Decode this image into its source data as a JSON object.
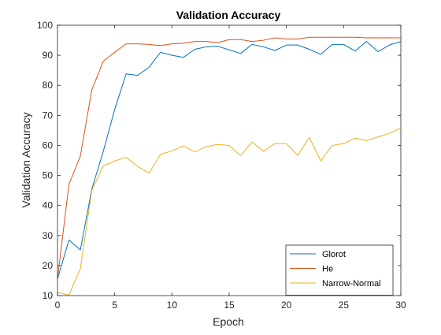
{
  "chart_data": {
    "type": "line",
    "title": "Validation Accuracy",
    "xlabel": "Epoch",
    "ylabel": "Validation Accuracy",
    "xlim": [
      0,
      30
    ],
    "ylim": [
      10,
      100
    ],
    "xticks": [
      0,
      5,
      10,
      15,
      20,
      25,
      30
    ],
    "yticks": [
      10,
      20,
      30,
      40,
      50,
      60,
      70,
      80,
      90,
      100
    ],
    "grid": false,
    "legend_position": "bottom-right",
    "x": [
      0,
      1,
      2,
      3,
      4,
      5,
      6,
      7,
      8,
      9,
      10,
      11,
      12,
      13,
      14,
      15,
      16,
      17,
      18,
      19,
      20,
      21,
      22,
      23,
      24,
      25,
      26,
      27,
      28,
      29,
      30
    ],
    "series": [
      {
        "name": "Glorot",
        "color": "#0072BD",
        "values": [
          15.5,
          28.5,
          25.2,
          45.5,
          58.0,
          72.0,
          83.8,
          83.3,
          86.0,
          91.0,
          90.0,
          89.3,
          92.0,
          92.8,
          93.0,
          91.8,
          90.6,
          93.6,
          92.8,
          91.6,
          93.4,
          93.4,
          92.0,
          90.3,
          93.6,
          93.6,
          91.4,
          94.6,
          91.2,
          93.4,
          94.6
        ]
      },
      {
        "name": "He",
        "color": "#D95319",
        "values": [
          15.5,
          47.0,
          56.5,
          78.5,
          88.0,
          91.0,
          93.8,
          93.8,
          93.6,
          93.2,
          93.8,
          94.0,
          94.6,
          94.6,
          94.2,
          95.2,
          95.2,
          94.6,
          95.0,
          95.8,
          95.4,
          95.4,
          96.0,
          96.0,
          96.0,
          96.0,
          96.0,
          95.8,
          95.8,
          95.8,
          95.8
        ]
      },
      {
        "name": "Narrow-Normal",
        "color": "#EDB120",
        "values": [
          11.0,
          10.2,
          19.0,
          45.0,
          53.2,
          54.8,
          56.0,
          53.0,
          50.8,
          57.0,
          58.2,
          59.8,
          57.8,
          59.6,
          60.3,
          60.0,
          56.6,
          61.2,
          58.0,
          60.6,
          60.6,
          56.6,
          62.7,
          54.8,
          60.0,
          60.6,
          62.4,
          61.6,
          62.8,
          64.0,
          65.8
        ]
      }
    ]
  }
}
